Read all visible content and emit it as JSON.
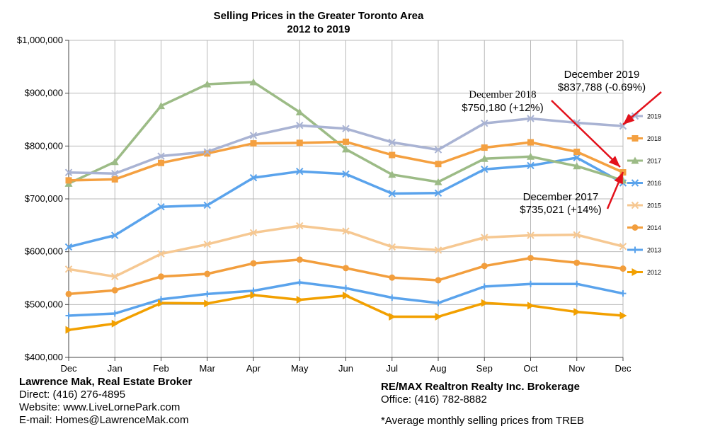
{
  "chart_data": {
    "type": "line",
    "title": "Selling Prices in the Greater Toronto Area",
    "subtitle": "2012 to 2019",
    "xlabel": "",
    "ylabel": "",
    "categories": [
      "Dec",
      "Jan",
      "Feb",
      "Mar",
      "Apr",
      "May",
      "Jun",
      "Jul",
      "Aug",
      "Sep",
      "Oct",
      "Nov",
      "Dec"
    ],
    "ylim": [
      400000,
      1000000
    ],
    "y_ticks": [
      400000,
      500000,
      600000,
      700000,
      800000,
      900000,
      1000000
    ],
    "y_tick_labels": [
      "$400,000",
      "$500,000",
      "$600,000",
      "$700,000",
      "$800,000",
      "$900,000",
      "$1,000,000"
    ],
    "grid": true,
    "legend_position": "right",
    "series": [
      {
        "name": "2019",
        "color": "#a9b3d3",
        "marker": "x",
        "values": [
          750000,
          748000,
          781000,
          789000,
          820000,
          839000,
          833000,
          807000,
          793000,
          843000,
          852000,
          844000,
          837788
        ]
      },
      {
        "name": "2018",
        "color": "#f4a040",
        "marker": "square",
        "values": [
          735000,
          737000,
          768000,
          786000,
          805000,
          806000,
          808000,
          783000,
          766000,
          797000,
          807000,
          789000,
          750180
        ]
      },
      {
        "name": "2017",
        "color": "#9cbb86",
        "marker": "triangle",
        "values": [
          729000,
          770000,
          876000,
          917000,
          921000,
          864000,
          794000,
          746000,
          732000,
          776000,
          780000,
          762000,
          735021
        ]
      },
      {
        "name": "2016",
        "color": "#5aa3ec",
        "marker": "x",
        "values": [
          609000,
          631000,
          685000,
          688000,
          740000,
          752000,
          747000,
          710000,
          711000,
          756000,
          763000,
          778000,
          730000
        ]
      },
      {
        "name": "2015",
        "color": "#f6c892",
        "marker": "x",
        "values": [
          567000,
          553000,
          596000,
          614000,
          636000,
          649000,
          639000,
          609000,
          603000,
          627000,
          631000,
          632000,
          610000
        ]
      },
      {
        "name": "2014",
        "color": "#f29e3d",
        "marker": "circle",
        "values": [
          520000,
          527000,
          553000,
          558000,
          578000,
          585000,
          569000,
          551000,
          546000,
          573000,
          588000,
          579000,
          568000
        ]
      },
      {
        "name": "2013",
        "color": "#5aa3ec",
        "marker": "plus",
        "values": [
          479000,
          483000,
          510000,
          520000,
          526000,
          542000,
          531000,
          513000,
          503000,
          534000,
          539000,
          539000,
          521000
        ]
      },
      {
        "name": "2012",
        "color": "#f2a000",
        "marker": "triangle-right",
        "values": [
          452000,
          464000,
          503000,
          502000,
          518000,
          509000,
          517000,
          477000,
          477000,
          503000,
          498000,
          486000,
          479000
        ]
      }
    ],
    "annotations": [
      {
        "line1": "December 2019",
        "line2": "$837,788 (-0.69%)"
      },
      {
        "line1": "December 2018",
        "line2": "$750,180 (+12%)"
      },
      {
        "line1": "December 2017",
        "line2": "$735,021 (+14%)"
      }
    ]
  },
  "footer": {
    "broker_name": "Lawrence Mak, Real Estate Broker",
    "direct": "Direct:  (416) 276-4895",
    "website": "Website:  www.LiveLornePark.com",
    "email": "E-mail:  Homes@LawrenceMak.com",
    "brokerage": "RE/MAX Realtron Realty Inc. Brokerage",
    "office": "Office: (416) 782-8882",
    "note": "*Average monthly selling prices from TREB"
  }
}
